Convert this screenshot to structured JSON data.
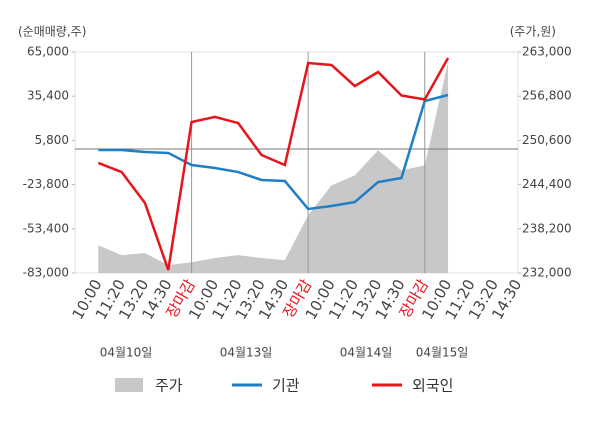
{
  "chart_data": {
    "type": "line",
    "y_axis_label": "(순매매량,주)",
    "y2_axis_label": "(주가,원)",
    "categories": [
      "10:00",
      "11:20",
      "13:20",
      "14:30",
      "장마감",
      "10:00",
      "11:20",
      "13:20",
      "14:30",
      "장마감",
      "10:00",
      "11:20",
      "13:20",
      "14:30",
      "장마감",
      "10:00",
      "11:20",
      "13:20",
      "14:30"
    ],
    "dates": [
      "04월10일",
      "04월13일",
      "04월14일",
      "04월15일"
    ],
    "series": [
      {
        "name": "주가",
        "type": "area",
        "axis": "y2",
        "color": "#c8c8c8",
        "values": [
          235900,
          234500,
          234800,
          233100,
          233500,
          234100,
          234500,
          234100,
          233800,
          240100,
          244300,
          245700,
          249200,
          246400,
          247100,
          261600,
          null,
          null,
          null
        ]
      },
      {
        "name": "기관",
        "color": "#1f7fc4",
        "values": [
          -600,
          -600,
          -2000,
          -2600,
          -10700,
          -12700,
          -15400,
          -20700,
          -21400,
          -40100,
          -38100,
          -35500,
          -22100,
          -19400,
          32200,
          36200,
          null,
          null,
          null
        ]
      },
      {
        "name": "외국인",
        "color": "#e8141c",
        "values": [
          -9300,
          -15400,
          -36100,
          -81000,
          18100,
          21500,
          17400,
          -4000,
          -10700,
          57600,
          56300,
          42200,
          51600,
          35900,
          33200,
          61000,
          null,
          null,
          null
        ]
      }
    ],
    "ylim": [
      -83000,
      65000
    ],
    "yticks": [
      {
        "value": 65000,
        "label": "65,000"
      },
      {
        "value": 35400,
        "label": "35,400"
      },
      {
        "value": 5800,
        "label": "5,800"
      },
      {
        "value": -23800,
        "label": "-23,800"
      },
      {
        "value": -53400,
        "label": "-53,400"
      },
      {
        "value": -83000,
        "label": "-83,000"
      }
    ],
    "y2lim": [
      232000,
      263000
    ],
    "y2ticks": [
      {
        "value": 263000,
        "label": "263,000"
      },
      {
        "value": 256800,
        "label": "256,800"
      },
      {
        "value": 250600,
        "label": "250,600"
      },
      {
        "value": 244400,
        "label": "244,400"
      },
      {
        "value": 238200,
        "label": "238,200"
      },
      {
        "value": 232000,
        "label": "232,000"
      }
    ],
    "close_color": "#e8141c"
  }
}
